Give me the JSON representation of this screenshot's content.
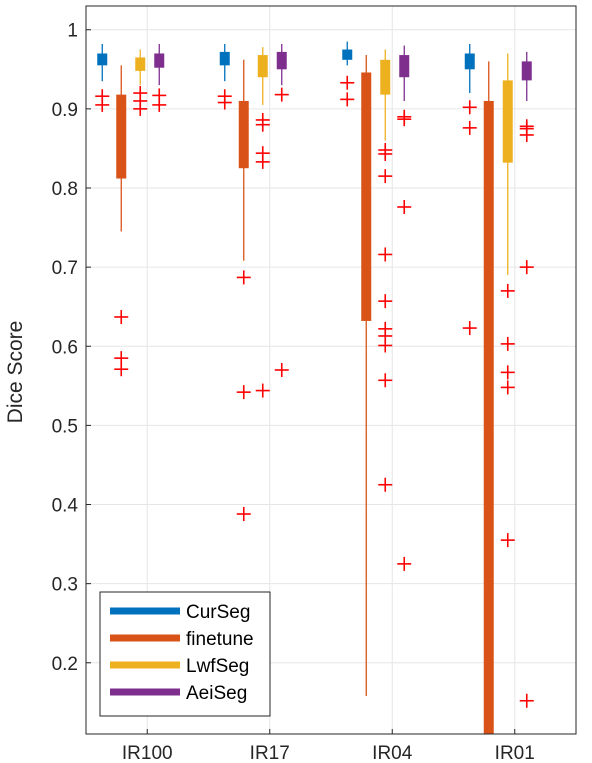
{
  "chart_data": {
    "type": "box",
    "title": "",
    "xlabel": "",
    "ylabel": "Dice Score",
    "ylim": [
      0.11,
      1.03
    ],
    "yticks": [
      0.2,
      0.3,
      0.4,
      0.5,
      0.6,
      0.7,
      0.8,
      0.9,
      1
    ],
    "ytick_labels": [
      "0.2",
      "0.3",
      "0.4",
      "0.5",
      "0.6",
      "0.7",
      "0.8",
      "0.9",
      "1"
    ],
    "categories": [
      "IR100",
      "IR17",
      "IR04",
      "IR01"
    ],
    "grid": true,
    "legend_position": "bottom-left",
    "series": [
      {
        "name": "CurSeg",
        "color": "#0072BD",
        "boxes": [
          {
            "whisker_low": 0.935,
            "q1": 0.955,
            "q3": 0.97,
            "whisker_high": 0.982,
            "outliers": [
              0.916,
              0.905
            ]
          },
          {
            "whisker_low": 0.935,
            "q1": 0.955,
            "q3": 0.972,
            "whisker_high": 0.982,
            "outliers": [
              0.916,
              0.908
            ]
          },
          {
            "whisker_low": 0.955,
            "q1": 0.962,
            "q3": 0.975,
            "whisker_high": 0.985,
            "outliers": [
              0.933,
              0.912
            ]
          },
          {
            "whisker_low": 0.92,
            "q1": 0.95,
            "q3": 0.97,
            "whisker_high": 0.982,
            "outliers": [
              0.902,
              0.876,
              0.623
            ]
          }
        ]
      },
      {
        "name": "finetune",
        "color": "#D95319",
        "boxes": [
          {
            "whisker_low": 0.745,
            "q1": 0.812,
            "q3": 0.918,
            "whisker_high": 0.955,
            "outliers": [
              0.637,
              0.585,
              0.571
            ]
          },
          {
            "whisker_low": 0.708,
            "q1": 0.825,
            "q3": 0.91,
            "whisker_high": 0.962,
            "outliers": [
              0.687,
              0.542,
              0.388
            ]
          },
          {
            "whisker_low": 0.158,
            "q1": 0.632,
            "q3": 0.946,
            "whisker_high": 0.968,
            "outliers": []
          },
          {
            "whisker_low": 0.11,
            "q1": 0.11,
            "q3": 0.91,
            "whisker_high": 0.96,
            "outliers": []
          }
        ]
      },
      {
        "name": "LwfSeg",
        "color": "#EDB120",
        "boxes": [
          {
            "whisker_low": 0.93,
            "q1": 0.948,
            "q3": 0.965,
            "whisker_high": 0.975,
            "outliers": [
              0.92,
              0.91,
              0.9
            ]
          },
          {
            "whisker_low": 0.905,
            "q1": 0.94,
            "q3": 0.968,
            "whisker_high": 0.978,
            "outliers": [
              0.886,
              0.88,
              0.844,
              0.833,
              0.544
            ]
          },
          {
            "whisker_low": 0.86,
            "q1": 0.918,
            "q3": 0.962,
            "whisker_high": 0.975,
            "outliers": [
              0.848,
              0.843,
              0.815,
              0.716,
              0.657,
              0.622,
              0.613,
              0.601,
              0.557,
              0.425
            ]
          },
          {
            "whisker_low": 0.69,
            "q1": 0.832,
            "q3": 0.936,
            "whisker_high": 0.97,
            "outliers": [
              0.67,
              0.603,
              0.567,
              0.548,
              0.355
            ]
          }
        ]
      },
      {
        "name": "AeiSeg",
        "color": "#7E2F8E",
        "boxes": [
          {
            "whisker_low": 0.93,
            "q1": 0.952,
            "q3": 0.97,
            "whisker_high": 0.982,
            "outliers": [
              0.917,
              0.905
            ]
          },
          {
            "whisker_low": 0.93,
            "q1": 0.95,
            "q3": 0.972,
            "whisker_high": 0.982,
            "outliers": [
              0.918,
              0.57
            ]
          },
          {
            "whisker_low": 0.91,
            "q1": 0.94,
            "q3": 0.968,
            "whisker_high": 0.98,
            "outliers": [
              0.89,
              0.887,
              0.776,
              0.325
            ]
          },
          {
            "whisker_low": 0.91,
            "q1": 0.936,
            "q3": 0.96,
            "whisker_high": 0.972,
            "outliers": [
              0.878,
              0.875,
              0.867,
              0.7,
              0.152
            ]
          }
        ]
      }
    ]
  }
}
